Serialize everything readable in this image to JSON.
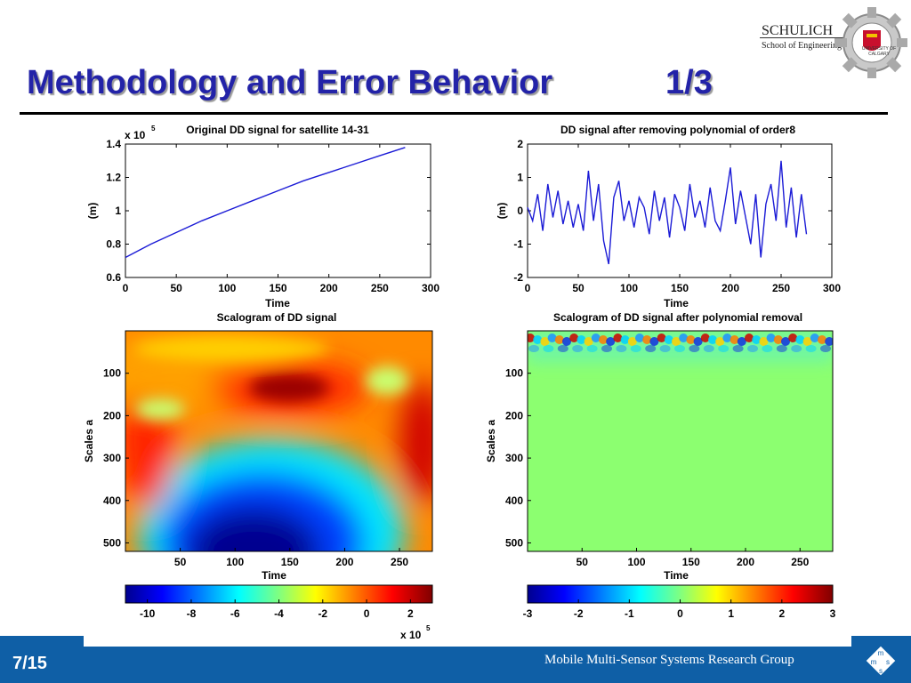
{
  "slide": {
    "title": "Methodology and Error Behavior",
    "section_counter": "1/3",
    "logo_name": "SCHULICH",
    "logo_sub": "School of Engineering",
    "logo_university": "UNIVERSITY OF CALGARY",
    "page_number": "7/15",
    "group_name": "Mobile Multi-Sensor Systems Research Group",
    "group_mark": [
      "m",
      "m",
      "s",
      "s"
    ]
  },
  "chart_data": [
    {
      "type": "line",
      "title": "Original DD signal for satellite 14-31",
      "xlabel": "Time",
      "ylabel": "(m)",
      "y_multiplier_label": "x 10",
      "y_multiplier_exp": "5",
      "xlim": [
        0,
        300
      ],
      "ylim": [
        0.6,
        1.4
      ],
      "xticks": [
        "0",
        "50",
        "100",
        "150",
        "200",
        "250",
        "300"
      ],
      "yticks": [
        "0.6",
        "0.8",
        "1",
        "1.2",
        "1.4"
      ],
      "x": [
        0,
        25,
        50,
        75,
        100,
        125,
        150,
        175,
        200,
        225,
        250,
        275
      ],
      "y": [
        0.72,
        0.8,
        0.87,
        0.94,
        1.0,
        1.06,
        1.12,
        1.18,
        1.23,
        1.28,
        1.33,
        1.38
      ],
      "color": "#1b1bd6"
    },
    {
      "type": "line",
      "title": "DD signal after removing polynomial of order8",
      "xlabel": "Time",
      "ylabel": "(m)",
      "xlim": [
        0,
        300
      ],
      "ylim": [
        -2,
        2
      ],
      "xticks": [
        "0",
        "50",
        "100",
        "150",
        "200",
        "250",
        "300"
      ],
      "yticks": [
        "-2",
        "-1",
        "0",
        "1",
        "2"
      ],
      "x": [
        0,
        5,
        10,
        15,
        20,
        25,
        30,
        35,
        40,
        45,
        50,
        55,
        60,
        65,
        70,
        75,
        80,
        85,
        90,
        95,
        100,
        105,
        110,
        115,
        120,
        125,
        130,
        135,
        140,
        145,
        150,
        155,
        160,
        165,
        170,
        175,
        180,
        185,
        190,
        195,
        200,
        205,
        210,
        215,
        220,
        225,
        230,
        235,
        240,
        245,
        250,
        255,
        260,
        265,
        270,
        275
      ],
      "y": [
        0.1,
        -0.3,
        0.5,
        -0.6,
        0.8,
        -0.2,
        0.6,
        -0.4,
        0.3,
        -0.5,
        0.2,
        -0.6,
        1.2,
        -0.3,
        0.8,
        -0.9,
        -1.6,
        0.4,
        0.9,
        -0.3,
        0.3,
        -0.5,
        0.4,
        0.1,
        -0.7,
        0.6,
        -0.3,
        0.4,
        -0.8,
        0.5,
        0.1,
        -0.6,
        0.8,
        -0.2,
        0.3,
        -0.5,
        0.7,
        -0.3,
        -0.6,
        0.3,
        1.3,
        -0.4,
        0.6,
        -0.2,
        -1.0,
        0.5,
        -1.4,
        0.2,
        0.8,
        -0.3,
        1.5,
        -0.5,
        0.7,
        -0.8,
        0.5,
        -0.7
      ],
      "color": "#1b1bd6"
    },
    {
      "type": "heatmap",
      "title": "Scalogram of DD signal",
      "xlabel": "Time",
      "ylabel": "Scales a",
      "xticks": [
        "50",
        "100",
        "150",
        "200",
        "250"
      ],
      "yticks": [
        "100",
        "200",
        "300",
        "400",
        "500"
      ],
      "colorbar_ticks": [
        "-10",
        "-8",
        "-6",
        "-4",
        "-2",
        "0",
        "2"
      ],
      "colorbar_multiplier_label": "x 10",
      "colorbar_multiplier_exp": "5",
      "colorbar_range": [
        -11,
        3
      ]
    },
    {
      "type": "heatmap",
      "title": "Scalogram of DD signal after polynomial removal",
      "xlabel": "Time",
      "ylabel": "Scales a",
      "xticks": [
        "50",
        "100",
        "150",
        "200",
        "250"
      ],
      "yticks": [
        "100",
        "200",
        "300",
        "400",
        "500"
      ],
      "colorbar_ticks": [
        "-3",
        "-2",
        "-1",
        "0",
        "1",
        "2",
        "3"
      ],
      "colorbar_range": [
        -3,
        3
      ]
    }
  ]
}
